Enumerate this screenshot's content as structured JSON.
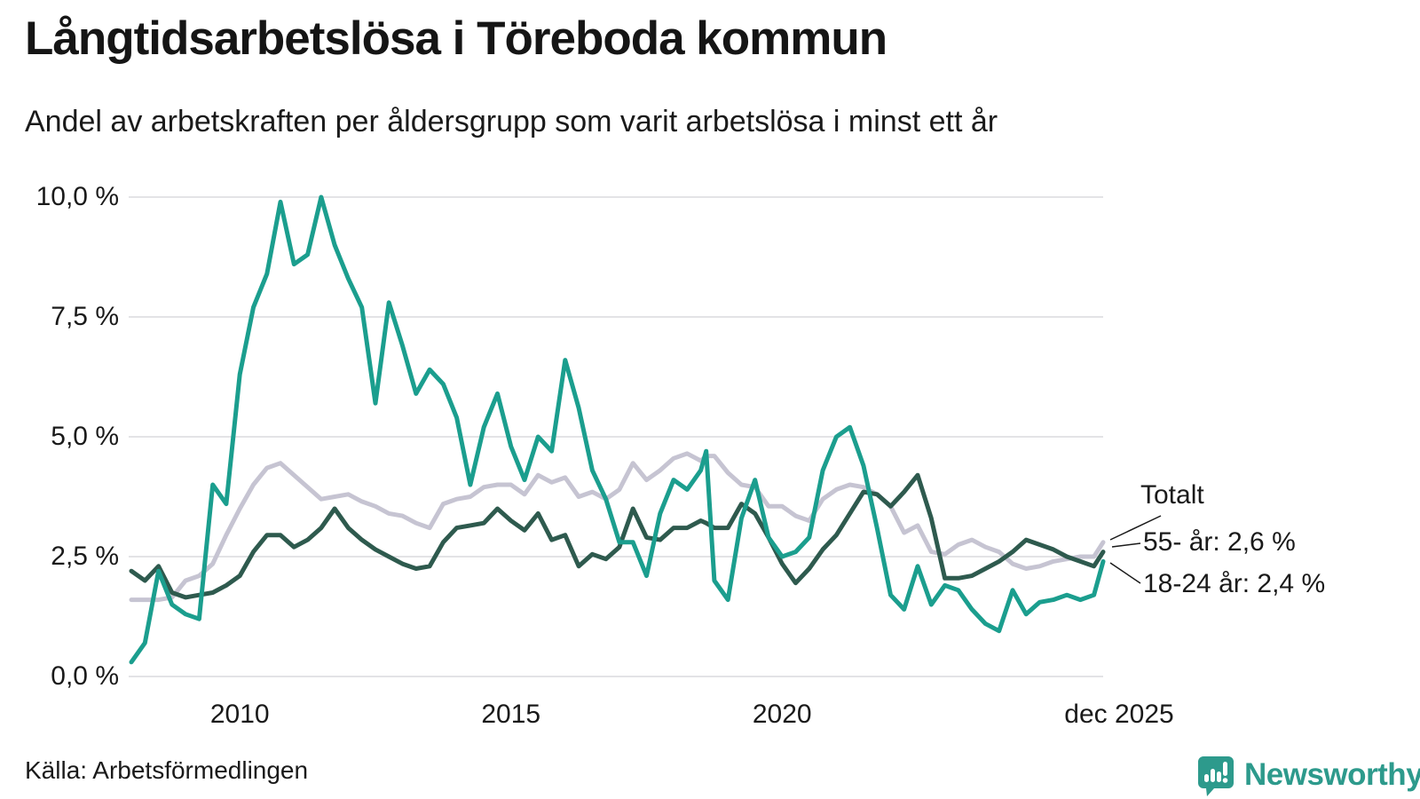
{
  "header": {
    "title": "Långtidsarbetslösa i Töreboda kommun",
    "subtitle": "Andel av arbetskraften per åldersgrupp som varit arbetslösa i minst ett år"
  },
  "chart_data": {
    "type": "line",
    "title": "Långtidsarbetslösa i Töreboda kommun",
    "subtitle": "Andel av arbetskraften per åldersgrupp som varit arbetslösa i minst ett år",
    "x_unit": "decimal_year",
    "xlim": [
      2008.0,
      2025.92
    ],
    "ylim": [
      0,
      10
    ],
    "grid": "horizontal",
    "gridline_color": "#e3e3e6",
    "y_ticks": [
      {
        "label": "10,0 %",
        "value": 10.0
      },
      {
        "label": "7,5 %",
        "value": 7.5
      },
      {
        "label": "5,0 %",
        "value": 5.0
      },
      {
        "label": "2,5 %",
        "value": 2.5
      },
      {
        "label": "0,0 %",
        "value": 0.0
      }
    ],
    "x_ticks": [
      {
        "label": "2010",
        "year": 2010
      },
      {
        "label": "2015",
        "year": 2015
      },
      {
        "label": "2020",
        "year": 2020
      },
      {
        "label": "dec 2025",
        "year": 2025.92
      }
    ],
    "x": [
      2008.0,
      2008.25,
      2008.5,
      2008.75,
      2009.0,
      2009.25,
      2009.5,
      2009.75,
      2010.0,
      2010.25,
      2010.5,
      2010.75,
      2011.0,
      2011.25,
      2011.5,
      2011.75,
      2012.0,
      2012.25,
      2012.5,
      2012.75,
      2013.0,
      2013.25,
      2013.5,
      2013.75,
      2014.0,
      2014.25,
      2014.5,
      2014.75,
      2015.0,
      2015.25,
      2015.5,
      2015.75,
      2016.0,
      2016.25,
      2016.5,
      2016.75,
      2017.0,
      2017.25,
      2017.5,
      2017.75,
      2018.0,
      2018.25,
      2018.5,
      2018.6,
      2018.75,
      2019.0,
      2019.25,
      2019.5,
      2019.75,
      2020.0,
      2020.25,
      2020.5,
      2020.75,
      2021.0,
      2021.25,
      2021.5,
      2021.75,
      2022.0,
      2022.25,
      2022.5,
      2022.75,
      2023.0,
      2023.25,
      2023.5,
      2023.75,
      2024.0,
      2024.25,
      2024.5,
      2024.75,
      2025.0,
      2025.25,
      2025.5,
      2025.75,
      2025.92
    ],
    "series": [
      {
        "name": "Totalt",
        "color": "#c6c4d2",
        "stroke_width": 5,
        "values": [
          1.6,
          1.6,
          1.6,
          1.65,
          2.0,
          2.1,
          2.35,
          2.95,
          3.5,
          4.0,
          4.35,
          4.45,
          4.2,
          3.95,
          3.7,
          3.75,
          3.8,
          3.65,
          3.55,
          3.4,
          3.35,
          3.2,
          3.1,
          3.6,
          3.7,
          3.75,
          3.95,
          4.0,
          4.0,
          3.8,
          4.2,
          4.05,
          4.15,
          3.75,
          3.85,
          3.7,
          3.9,
          4.45,
          4.1,
          4.3,
          4.55,
          4.65,
          4.5,
          4.6,
          4.6,
          4.25,
          4.0,
          3.95,
          3.55,
          3.55,
          3.35,
          3.25,
          3.7,
          3.9,
          4.0,
          3.95,
          3.8,
          3.55,
          3.0,
          3.15,
          2.6,
          2.55,
          2.75,
          2.85,
          2.7,
          2.6,
          2.35,
          2.25,
          2.3,
          2.4,
          2.45,
          2.5,
          2.5,
          2.8
        ]
      },
      {
        "name": "55- år",
        "color": "#2e5a4e",
        "stroke_width": 5,
        "values": [
          2.2,
          2.0,
          2.3,
          1.75,
          1.65,
          1.7,
          1.75,
          1.9,
          2.1,
          2.6,
          2.95,
          2.95,
          2.7,
          2.85,
          3.1,
          3.5,
          3.1,
          2.85,
          2.65,
          2.5,
          2.35,
          2.25,
          2.3,
          2.8,
          3.1,
          3.15,
          3.2,
          3.5,
          3.25,
          3.05,
          3.4,
          2.85,
          2.95,
          2.3,
          2.55,
          2.45,
          2.7,
          3.5,
          2.9,
          2.85,
          3.1,
          3.1,
          3.25,
          3.2,
          3.1,
          3.1,
          3.6,
          3.4,
          2.9,
          2.35,
          1.95,
          2.25,
          2.65,
          2.95,
          3.4,
          3.85,
          3.8,
          3.55,
          3.85,
          4.2,
          3.3,
          2.05,
          2.05,
          2.1,
          2.25,
          2.4,
          2.6,
          2.85,
          2.75,
          2.65,
          2.5,
          2.4,
          2.3,
          2.6
        ]
      },
      {
        "name": "18-24 år",
        "color": "#1b9e8e",
        "stroke_width": 5,
        "values": [
          0.3,
          0.7,
          2.2,
          1.5,
          1.3,
          1.2,
          4.0,
          3.6,
          6.3,
          7.7,
          8.4,
          9.9,
          8.6,
          8.8,
          10.0,
          9.0,
          8.3,
          7.7,
          5.7,
          7.8,
          6.9,
          5.9,
          6.4,
          6.1,
          5.4,
          4.0,
          5.2,
          5.9,
          4.8,
          4.1,
          5.0,
          4.7,
          6.6,
          5.6,
          4.3,
          3.7,
          2.8,
          2.8,
          2.1,
          3.4,
          4.1,
          3.9,
          4.3,
          4.7,
          2.0,
          1.6,
          3.3,
          4.1,
          2.9,
          2.5,
          2.6,
          2.9,
          4.3,
          5.0,
          5.2,
          4.4,
          3.1,
          1.7,
          1.4,
          2.3,
          1.5,
          1.9,
          1.8,
          1.4,
          1.1,
          0.95,
          1.8,
          1.3,
          1.55,
          1.6,
          1.7,
          1.6,
          1.7,
          2.4
        ]
      }
    ],
    "end_labels": [
      {
        "text": "Totalt",
        "series": "Totalt"
      },
      {
        "text": "55- år: 2,6 %",
        "series": "55- år",
        "value": 2.6
      },
      {
        "text": "18-24 år: 2,4 %",
        "series": "18-24 år",
        "value": 2.4
      }
    ],
    "legend_position": "right-end-annotations"
  },
  "source": {
    "text": "Källa: Arbetsförmedlingen"
  },
  "brand": {
    "name": "Newsworthy",
    "color": "#2d9a8c",
    "icon": "speech-bubble-bar-chart-icon"
  }
}
